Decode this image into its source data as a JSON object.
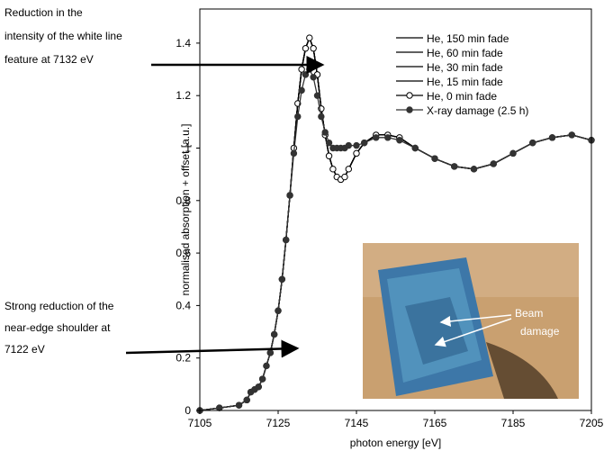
{
  "chart_data": {
    "type": "line",
    "xlabel": "photon energy [eV]",
    "ylabel": "normalised absorption + offset [a.u.]",
    "xlim": [
      7105,
      7205
    ],
    "ylim": [
      0,
      1.53
    ],
    "xticks": [
      7105,
      7125,
      7145,
      7165,
      7185,
      7205
    ],
    "yticks": [
      0,
      0.2,
      0.4,
      0.6,
      0.8,
      1,
      1.2,
      1.4
    ],
    "x": [
      7105,
      7110,
      7115,
      7117,
      7118,
      7119,
      7120,
      7121,
      7122,
      7123,
      7124,
      7125,
      7126,
      7127,
      7128,
      7129,
      7130,
      7131,
      7132,
      7133,
      7134,
      7135,
      7136,
      7137,
      7138,
      7139,
      7140,
      7141,
      7142,
      7143,
      7145,
      7147,
      7150,
      7153,
      7156,
      7160,
      7165,
      7170,
      7175,
      7180,
      7185,
      7190,
      7195,
      7200,
      7205
    ],
    "series": [
      {
        "name": "He, 150 min fade",
        "color": "#000000",
        "marker": "none",
        "values": [
          0,
          0.01,
          0.02,
          0.04,
          0.07,
          0.08,
          0.09,
          0.12,
          0.17,
          0.22,
          0.29,
          0.38,
          0.5,
          0.65,
          0.82,
          1.0,
          1.17,
          1.3,
          1.38,
          1.42,
          1.38,
          1.28,
          1.15,
          1.05,
          0.97,
          0.92,
          0.89,
          0.88,
          0.89,
          0.92,
          0.98,
          1.02,
          1.05,
          1.05,
          1.04,
          1.0,
          0.96,
          0.93,
          0.92,
          0.94,
          0.98,
          1.02,
          1.04,
          1.05,
          1.03
        ]
      },
      {
        "name": "He, 60 min fade",
        "color": "#000000",
        "marker": "none",
        "values": [
          0,
          0.01,
          0.02,
          0.04,
          0.07,
          0.08,
          0.09,
          0.12,
          0.17,
          0.22,
          0.29,
          0.38,
          0.5,
          0.65,
          0.82,
          1.0,
          1.17,
          1.3,
          1.38,
          1.42,
          1.38,
          1.28,
          1.15,
          1.05,
          0.97,
          0.92,
          0.89,
          0.88,
          0.89,
          0.92,
          0.98,
          1.02,
          1.05,
          1.05,
          1.04,
          1.0,
          0.96,
          0.93,
          0.92,
          0.94,
          0.98,
          1.02,
          1.04,
          1.05,
          1.03
        ]
      },
      {
        "name": "He, 30 min fade",
        "color": "#000000",
        "marker": "none",
        "values": [
          0,
          0.01,
          0.02,
          0.04,
          0.07,
          0.08,
          0.09,
          0.12,
          0.17,
          0.22,
          0.29,
          0.38,
          0.5,
          0.65,
          0.82,
          1.0,
          1.17,
          1.3,
          1.38,
          1.42,
          1.38,
          1.28,
          1.15,
          1.05,
          0.97,
          0.92,
          0.89,
          0.88,
          0.89,
          0.92,
          0.98,
          1.02,
          1.05,
          1.05,
          1.04,
          1.0,
          0.96,
          0.93,
          0.92,
          0.94,
          0.98,
          1.02,
          1.04,
          1.05,
          1.03
        ]
      },
      {
        "name": "He, 15 min fade",
        "color": "#000000",
        "marker": "none",
        "values": [
          0,
          0.01,
          0.02,
          0.04,
          0.07,
          0.08,
          0.09,
          0.12,
          0.17,
          0.22,
          0.29,
          0.38,
          0.5,
          0.65,
          0.82,
          1.0,
          1.17,
          1.3,
          1.38,
          1.42,
          1.38,
          1.28,
          1.15,
          1.05,
          0.97,
          0.92,
          0.89,
          0.88,
          0.89,
          0.92,
          0.98,
          1.02,
          1.05,
          1.05,
          1.04,
          1.0,
          0.96,
          0.93,
          0.92,
          0.94,
          0.98,
          1.02,
          1.04,
          1.05,
          1.03
        ]
      },
      {
        "name": "He, 0 min fade",
        "color": "#000000",
        "marker": "open",
        "values": [
          0,
          0.01,
          0.02,
          0.04,
          0.07,
          0.08,
          0.09,
          0.12,
          0.17,
          0.22,
          0.29,
          0.38,
          0.5,
          0.65,
          0.82,
          1.0,
          1.17,
          1.3,
          1.38,
          1.42,
          1.38,
          1.28,
          1.15,
          1.05,
          0.97,
          0.92,
          0.89,
          0.88,
          0.89,
          0.92,
          0.98,
          1.02,
          1.05,
          1.05,
          1.04,
          1.0,
          0.96,
          0.93,
          0.92,
          0.94,
          0.98,
          1.02,
          1.04,
          1.05,
          1.03
        ]
      },
      {
        "name": "X-ray damage (2.5 h)",
        "color": "#333333",
        "marker": "filled",
        "values": [
          0,
          0.01,
          0.02,
          0.04,
          0.07,
          0.08,
          0.09,
          0.12,
          0.17,
          0.22,
          0.29,
          0.38,
          0.5,
          0.65,
          0.82,
          0.98,
          1.12,
          1.22,
          1.28,
          1.3,
          1.27,
          1.2,
          1.12,
          1.06,
          1.02,
          1.0,
          1.0,
          1.0,
          1.0,
          1.01,
          1.01,
          1.02,
          1.04,
          1.04,
          1.03,
          1.0,
          0.96,
          0.93,
          0.92,
          0.94,
          0.98,
          1.02,
          1.04,
          1.05,
          1.03
        ]
      }
    ],
    "annotations": [
      {
        "lines": [
          "Reduction in the",
          "intensity of the white line",
          "feature at 7132 eV"
        ]
      },
      {
        "lines": [
          "Strong reduction of the",
          "near-edge shoulder at",
          "7122 eV"
        ]
      }
    ],
    "inset_label": [
      "Beam",
      "damage"
    ]
  }
}
